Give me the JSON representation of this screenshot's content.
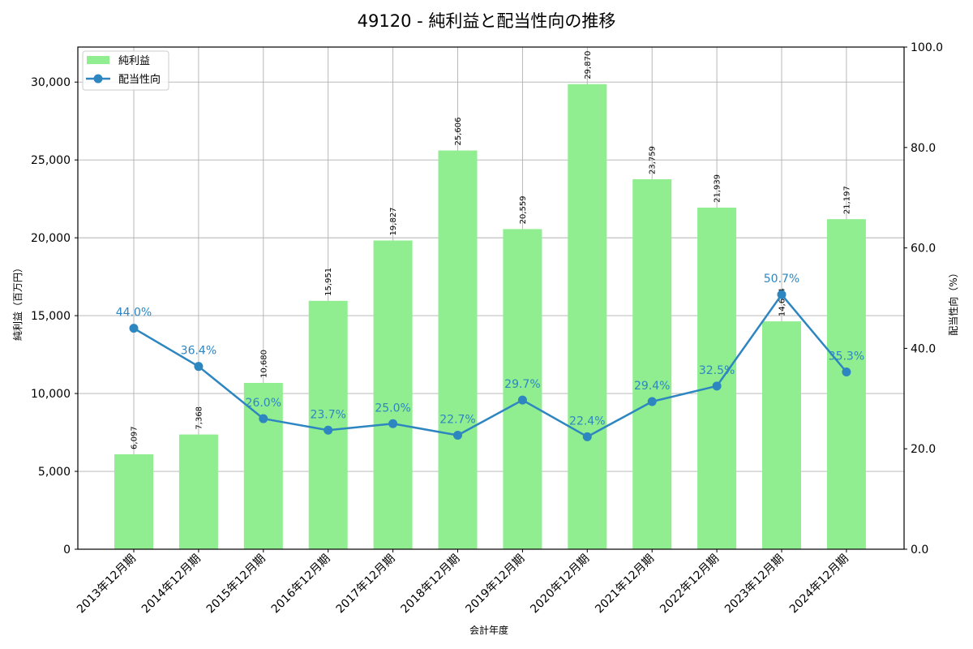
{
  "chart_data": {
    "type": "bar",
    "title": "49120 - 純利益と配当性向の推移",
    "xlabel": "会計年度",
    "ylabel": "純利益（百万円）",
    "y2label": "配当性向（%）",
    "categories": [
      "2013年12月期",
      "2014年12月期",
      "2015年12月期",
      "2016年12月期",
      "2017年12月期",
      "2018年12月期",
      "2019年12月期",
      "2020年12月期",
      "2021年12月期",
      "2022年12月期",
      "2023年12月期",
      "2024年12月期"
    ],
    "series": [
      {
        "name": "純利益",
        "type": "bar",
        "axis": "left",
        "color": "#90ee90",
        "values": [
          6097,
          7368,
          10680,
          15951,
          19827,
          25606,
          20559,
          29870,
          23759,
          21939,
          14634,
          21197
        ],
        "labels": [
          "6,097",
          "7,368",
          "10,680",
          "15,951",
          "19,827",
          "25,606",
          "20,559",
          "29,870",
          "23,759",
          "21,939",
          "14,634",
          "21,197"
        ]
      },
      {
        "name": "配当性向",
        "type": "line",
        "axis": "right",
        "color": "#2e86c1",
        "values": [
          44.0,
          36.4,
          26.0,
          23.7,
          25.0,
          22.7,
          29.7,
          22.4,
          29.4,
          32.5,
          50.7,
          35.3
        ],
        "labels": [
          "44.0%",
          "36.4%",
          "26.0%",
          "23.7%",
          "25.0%",
          "22.7%",
          "29.7%",
          "22.4%",
          "29.4%",
          "32.5%",
          "50.7%",
          "35.3%"
        ]
      }
    ],
    "ylim": [
      0,
      32250
    ],
    "y_ticks": [
      0,
      5000,
      10000,
      15000,
      20000,
      25000,
      30000
    ],
    "y_tick_labels": [
      "0",
      "5,000",
      "10,000",
      "15,000",
      "20,000",
      "25,000",
      "30,000"
    ],
    "y2lim": [
      0,
      100
    ],
    "y2_ticks": [
      0,
      20,
      40,
      60,
      80,
      100
    ],
    "y2_tick_labels": [
      "0.0",
      "20.0",
      "40.0",
      "60.0",
      "80.0",
      "100.0"
    ],
    "grid": true,
    "legend": {
      "position": "upper left",
      "entries": [
        "純利益",
        "配当性向"
      ]
    }
  }
}
